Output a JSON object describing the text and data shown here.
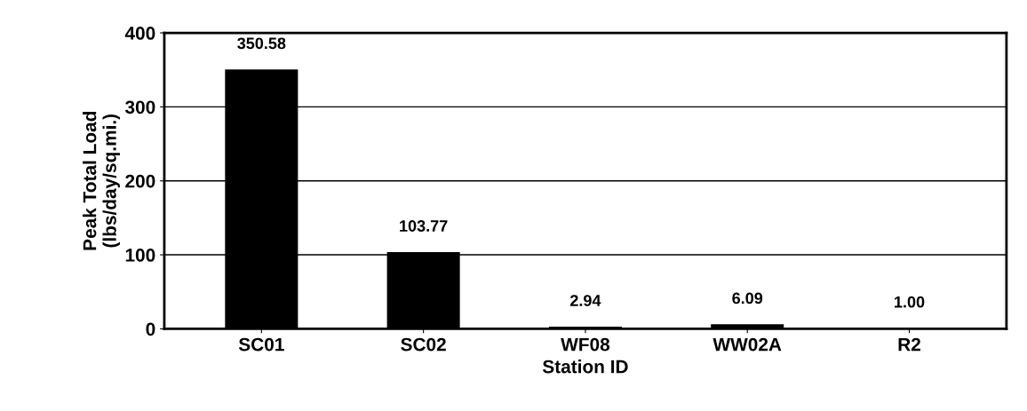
{
  "chart_data": {
    "type": "bar",
    "xlabel": "Station ID",
    "ylabel": "Peak Total Load\n(lbs/day/sq.mi.)",
    "categories": [
      "SC01",
      "SC02",
      "WF08",
      "WW02A",
      "R2"
    ],
    "values": [
      350.58,
      103.77,
      2.94,
      6.09,
      1.0
    ],
    "value_labels": [
      "350.58",
      "103.77",
      "2.94",
      "6.09",
      "1.00"
    ],
    "color": "#000000",
    "ylim": [
      0,
      400
    ],
    "yticks": [
      0,
      100,
      200,
      300,
      400
    ],
    "grid": "y"
  }
}
